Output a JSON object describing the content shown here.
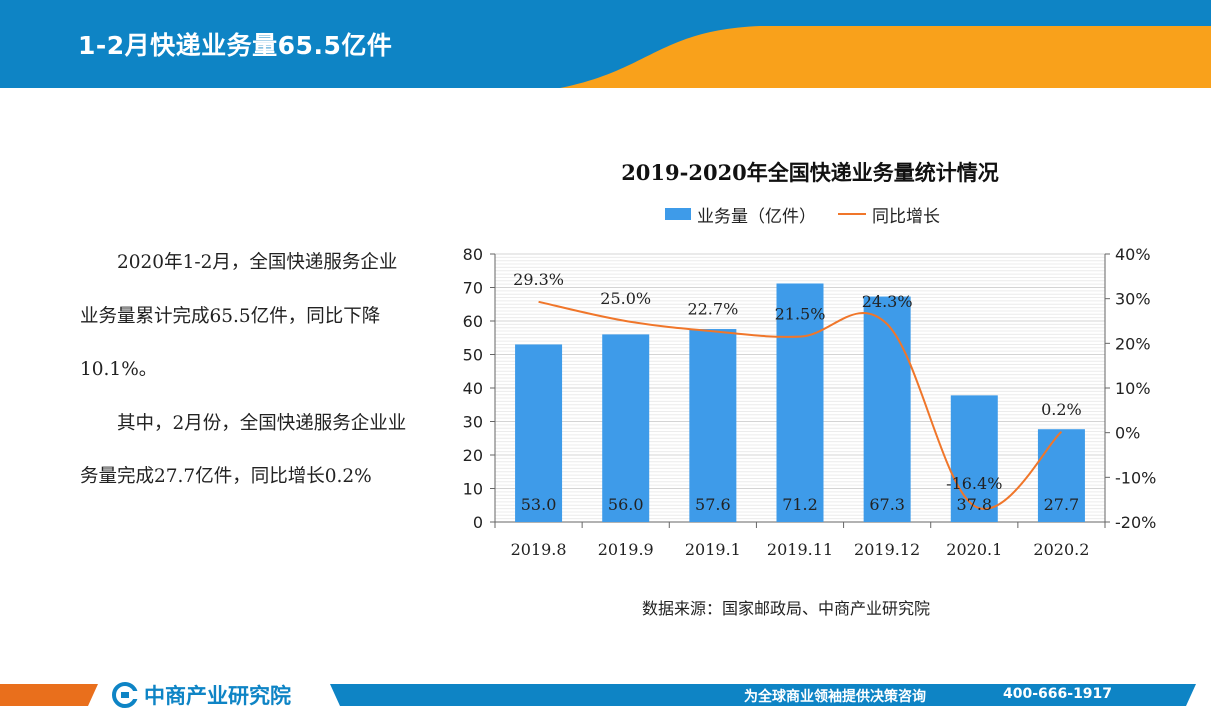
{
  "header": {
    "title": "1-2月快递业务量65.5亿件"
  },
  "body": {
    "paragraphs": [
      "2020年1-2月，全国快递服务企业业务量累计完成65.5亿件，同比下降10.1%。",
      "其中，2月份，全国快递服务企业业务量完成27.7亿件，同比增长0.2%"
    ]
  },
  "chart_data": {
    "type": "bar",
    "title": "2019-2020年全国快递业务量统计情况",
    "categories": [
      "2019.8",
      "2019.9",
      "2019.1",
      "2019.11",
      "2019.12",
      "2020.1",
      "2020.2"
    ],
    "series": [
      {
        "name": "业务量（亿件）",
        "type": "bar",
        "axis": "left",
        "values": [
          53.0,
          56.0,
          57.6,
          71.2,
          67.3,
          37.8,
          27.7
        ],
        "labels": [
          "53.0",
          "56.0",
          "57.6",
          "71.2",
          "67.3",
          "37.8",
          "27.7"
        ]
      },
      {
        "name": "同比增长",
        "type": "line",
        "axis": "right",
        "values": [
          29.3,
          25.0,
          22.7,
          21.5,
          24.3,
          -16.4,
          0.2
        ],
        "labels": [
          "29.3%",
          "25.0%",
          "22.7%",
          "21.5%",
          "24.3%",
          "-16.4%",
          "0.2%"
        ]
      }
    ],
    "y_left": {
      "min": 0,
      "max": 80,
      "step": 10,
      "ticks": [
        "0",
        "10",
        "20",
        "30",
        "40",
        "50",
        "60",
        "70",
        "80"
      ]
    },
    "y_right": {
      "min": -20,
      "max": 40,
      "step": 10,
      "ticks": [
        "-20%",
        "-10%",
        "0%",
        "10%",
        "20%",
        "30%",
        "40%"
      ]
    },
    "legend_position": "top",
    "grid": true,
    "colors": {
      "bar": "#3e9be9",
      "line": "#f0762a"
    }
  },
  "source": "数据来源：国家邮政局、中商产业研究院",
  "footer": {
    "logo_text": "中商产业研究院",
    "slogan": "为全球商业领袖提供决策咨询",
    "phone": "400-666-1917"
  },
  "colors": {
    "brand_blue": "#0e84c5",
    "accent_orange": "#f9a11b",
    "bar_blue": "#3e9be9",
    "line_orange": "#f0762a"
  }
}
